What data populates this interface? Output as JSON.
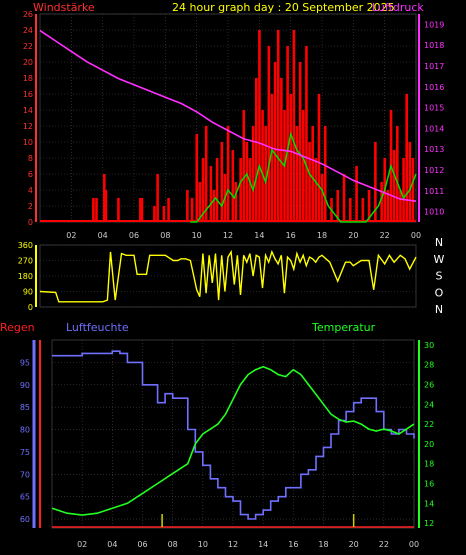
{
  "header": {
    "left_label": "Windstärke",
    "center_title": "24 hour graph day : 20 September 2025",
    "right_label": "Luftdruck"
  },
  "colors": {
    "wind_axis": "#ff3030",
    "pressure": "#ff30ff",
    "wind_bars": "#ff0000",
    "gust": "#00dd00",
    "calm": "#ffffff",
    "direction": "#ffff00",
    "humidity": "#7070ff",
    "temperature": "#20ff20",
    "rain": "#ff2020",
    "title": "#ffff00",
    "grid": "#444444"
  },
  "chart_data": [
    {
      "type": "bar",
      "name": "wind-pressure-panel",
      "x_ticks": [
        "02",
        "04",
        "06",
        "08",
        "10",
        "12",
        "14",
        "16",
        "18",
        "20",
        "22",
        "00"
      ],
      "y_left_ticks": [
        0,
        2,
        4,
        6,
        8,
        10,
        12,
        14,
        16,
        18,
        20,
        22,
        24,
        26
      ],
      "y_left_range": [
        0,
        26
      ],
      "y_right_ticks": [
        1010,
        1011,
        1012,
        1013,
        1014,
        1015,
        1016,
        1017,
        1018,
        1019
      ],
      "y_right_range": [
        1009.5,
        1019.5
      ],
      "wind_hours": [
        3.4,
        3.6,
        4.1,
        4.2,
        5.0,
        6.4,
        6.5,
        7.3,
        7.5,
        7.9,
        8.2,
        9.4,
        9.7,
        10.0,
        10.2,
        10.4,
        10.6,
        10.9,
        11.1,
        11.3,
        11.6,
        11.8,
        12.0,
        12.3,
        12.5,
        12.8,
        13.0,
        13.2,
        13.4,
        13.6,
        13.8,
        14.0,
        14.2,
        14.4,
        14.6,
        14.8,
        15.0,
        15.2,
        15.4,
        15.6,
        15.8,
        16.0,
        16.2,
        16.4,
        16.6,
        16.8,
        17.0,
        17.2,
        17.4,
        17.6,
        17.8,
        18.0,
        18.2,
        18.6,
        19.0,
        19.4,
        19.8,
        20.2,
        20.6,
        21.0,
        21.4,
        21.8,
        22.0,
        22.2,
        22.4,
        22.6,
        22.8,
        23.0,
        23.2,
        23.4,
        23.6,
        23.8
      ],
      "wind_values": [
        3,
        3,
        6,
        4,
        3,
        3,
        3,
        2,
        6,
        2,
        3,
        4,
        3,
        11,
        5,
        8,
        12,
        7,
        4,
        8,
        10,
        6,
        12,
        9,
        5,
        8,
        14,
        10,
        8,
        12,
        18,
        24,
        14,
        12,
        22,
        16,
        20,
        24,
        18,
        14,
        22,
        16,
        24,
        12,
        20,
        14,
        22,
        10,
        12,
        8,
        16,
        6,
        12,
        3,
        4,
        6,
        3,
        7,
        3,
        4,
        10,
        5,
        8,
        4,
        14,
        9,
        12,
        4,
        8,
        16,
        10,
        8
      ],
      "gust_hours": [
        9.6,
        10.0,
        10.4,
        10.8,
        11.2,
        11.6,
        12.0,
        12.4,
        12.8,
        13.2,
        13.6,
        14.0,
        14.4,
        14.8,
        15.2,
        15.6,
        16.0,
        16.4,
        16.8,
        17.2,
        17.6,
        18.0,
        18.4,
        18.8,
        19.2,
        19.6,
        20.0,
        20.4,
        20.8,
        21.2,
        21.6,
        22.0,
        22.4,
        22.8,
        23.2,
        23.6,
        24.0
      ],
      "gust_values": [
        0,
        0,
        1,
        2,
        3,
        2,
        4,
        3,
        5,
        6,
        4,
        7,
        5,
        9,
        8,
        7,
        11,
        9,
        8,
        6,
        5,
        4,
        2,
        1,
        0,
        0,
        0,
        0,
        0,
        1,
        2,
        4,
        7,
        5,
        3,
        4,
        6
      ],
      "pressure_hours": [
        0,
        1,
        2,
        3,
        4,
        5,
        6,
        7,
        8,
        9,
        10,
        11,
        12,
        13,
        14,
        15,
        16,
        17,
        18,
        19,
        20,
        21,
        22,
        23,
        24
      ],
      "pressure_values": [
        1018.7,
        1018.2,
        1017.7,
        1017.2,
        1016.8,
        1016.4,
        1016.1,
        1015.8,
        1015.5,
        1015.2,
        1014.8,
        1014.3,
        1013.9,
        1013.5,
        1013.3,
        1013.0,
        1012.9,
        1012.6,
        1012.3,
        1011.9,
        1011.5,
        1011.2,
        1010.9,
        1010.6,
        1010.5
      ]
    },
    {
      "type": "line",
      "name": "wind-direction-panel",
      "y_ticks": [
        0,
        90,
        180,
        270,
        360
      ],
      "y_range": [
        0,
        360
      ],
      "compass_labels": [
        "N",
        "W",
        "S",
        "O",
        "N"
      ],
      "hours": [
        0.0,
        1.0,
        1.2,
        2.0,
        3.0,
        4.0,
        4.3,
        4.5,
        4.8,
        5.2,
        5.5,
        5.8,
        6.0,
        6.2,
        6.8,
        7.0,
        7.5,
        8.0,
        8.5,
        8.8,
        9.0,
        9.3,
        9.6,
        10.0,
        10.2,
        10.4,
        10.6,
        10.8,
        11.0,
        11.2,
        11.4,
        11.6,
        11.8,
        12.0,
        12.2,
        12.4,
        12.6,
        12.8,
        13.0,
        13.2,
        13.4,
        13.6,
        13.8,
        14.0,
        14.2,
        14.4,
        14.6,
        14.8,
        15.0,
        15.2,
        15.4,
        15.6,
        15.8,
        16.0,
        16.2,
        16.4,
        16.6,
        16.8,
        17.0,
        17.2,
        17.4,
        17.6,
        17.8,
        18.0,
        18.5,
        19.0,
        19.5,
        19.8,
        20.0,
        20.5,
        21.0,
        21.3,
        21.6,
        22.0,
        22.3,
        22.6,
        23.0,
        23.3,
        23.6,
        24.0
      ],
      "values": [
        90,
        85,
        30,
        30,
        30,
        30,
        40,
        320,
        40,
        310,
        300,
        300,
        300,
        190,
        190,
        300,
        300,
        300,
        270,
        270,
        280,
        280,
        270,
        100,
        60,
        310,
        80,
        300,
        140,
        310,
        40,
        300,
        90,
        290,
        320,
        130,
        300,
        70,
        300,
        260,
        310,
        180,
        300,
        290,
        110,
        300,
        260,
        320,
        280,
        250,
        300,
        80,
        290,
        270,
        220,
        310,
        260,
        300,
        240,
        290,
        280,
        260,
        290,
        300,
        260,
        150,
        260,
        260,
        240,
        270,
        270,
        100,
        300,
        250,
        300,
        260,
        300,
        280,
        220,
        290
      ]
    },
    {
      "type": "line",
      "name": "humidity-temperature-panel",
      "y_left_ticks": [
        60,
        65,
        70,
        75,
        80,
        85,
        90,
        95
      ],
      "y_left_range": [
        58,
        100
      ],
      "y_right_ticks": [
        12,
        14,
        16,
        18,
        20,
        22,
        24,
        26,
        28,
        30
      ],
      "y_right_range": [
        11.5,
        30.5
      ],
      "hum_hours": [
        0,
        1,
        2,
        3,
        4,
        4.5,
        5,
        6,
        7,
        7.5,
        8,
        9,
        9.5,
        10,
        10.5,
        11,
        11.5,
        12,
        12.5,
        13,
        13.5,
        14,
        14.5,
        15,
        15.5,
        16,
        16.5,
        17,
        17.5,
        18,
        18.5,
        19,
        19.5,
        20,
        20.5,
        21,
        21.5,
        22,
        22.5,
        23,
        23.5,
        24
      ],
      "hum_values": [
        96.5,
        96.5,
        97,
        97,
        97.5,
        97,
        95,
        90,
        86,
        88,
        87,
        80,
        75,
        72,
        69,
        67,
        65,
        64,
        61,
        60,
        61,
        62,
        64,
        65,
        67,
        67,
        70,
        71,
        74,
        76,
        79,
        82,
        84,
        86,
        87,
        87,
        84,
        80,
        79,
        80,
        79,
        78
      ],
      "temp_hours": [
        0,
        1,
        2,
        3,
        4,
        5,
        6,
        7,
        8,
        9,
        9.5,
        10,
        10.5,
        11,
        11.5,
        12,
        12.5,
        13,
        13.5,
        14,
        14.5,
        15,
        15.5,
        16,
        16.5,
        17,
        17.5,
        18,
        18.5,
        19,
        19.5,
        20,
        20.5,
        21,
        21.5,
        22,
        22.5,
        23,
        23.5,
        24
      ],
      "temp_values": [
        13.5,
        13,
        12.8,
        13,
        13.5,
        14,
        15,
        16,
        17,
        18,
        20,
        21,
        21.5,
        22,
        23,
        24.5,
        26,
        27,
        27.5,
        27.8,
        27.5,
        27,
        26.8,
        27.5,
        27,
        26,
        25,
        24,
        23,
        22.5,
        22.2,
        22.3,
        22,
        21.5,
        21.3,
        21.5,
        21.3,
        21,
        21.5,
        22
      ],
      "rain_marks": [
        7.3,
        20.0
      ]
    }
  ],
  "panel3_labels": {
    "rain": "Regen",
    "humidity": "Luftfeuchte",
    "temperature": "Temperatur"
  }
}
